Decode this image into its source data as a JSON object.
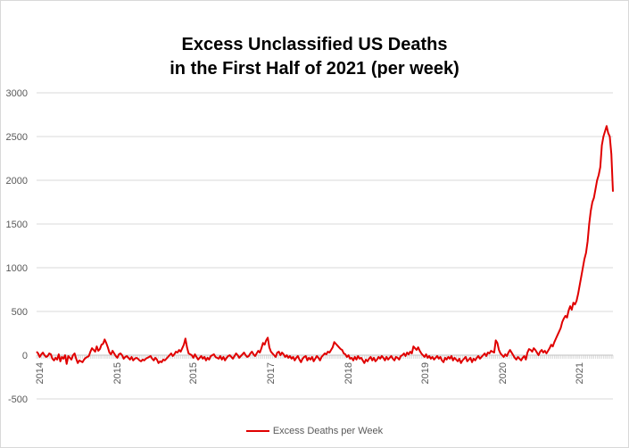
{
  "chart_data": {
    "type": "line",
    "title": [
      "Excess Unclassified US Deaths",
      "in the First Half of 2021 (per week)"
    ],
    "xlabel": "",
    "ylabel": "",
    "ylim": [
      -500,
      3000
    ],
    "yticks": [
      -500,
      0,
      500,
      1000,
      1500,
      2000,
      2500,
      3000
    ],
    "ytick_labels": [
      "-500",
      "0",
      "500",
      "1000",
      "1500",
      "2000",
      "2500",
      "3000"
    ],
    "xtick_labels": [
      "2014",
      "2015",
      "2015",
      "2017",
      "2018",
      "2019",
      "2020",
      "2021"
    ],
    "grid": true,
    "legend_position": "bottom",
    "series": [
      {
        "name": "Excess Deaths per Week",
        "color": "#e00000",
        "values": [
          40,
          20,
          -20,
          10,
          30,
          0,
          -20,
          -10,
          20,
          10,
          -40,
          -60,
          -30,
          -50,
          10,
          -70,
          -20,
          -40,
          0,
          -100,
          -10,
          -30,
          -50,
          0,
          20,
          -40,
          -90,
          -60,
          -70,
          -80,
          -50,
          -30,
          -20,
          -10,
          40,
          80,
          60,
          40,
          100,
          50,
          70,
          120,
          130,
          180,
          140,
          90,
          30,
          10,
          50,
          20,
          -10,
          -30,
          10,
          20,
          0,
          -40,
          -20,
          -10,
          -30,
          -50,
          -20,
          -60,
          -40,
          -30,
          -40,
          -60,
          -70,
          -50,
          -60,
          -40,
          -30,
          -20,
          -10,
          -40,
          -60,
          -30,
          -50,
          -90,
          -70,
          -80,
          -50,
          -60,
          -40,
          -20,
          0,
          20,
          -10,
          10,
          40,
          30,
          60,
          40,
          80,
          120,
          190,
          90,
          20,
          10,
          0,
          -30,
          10,
          -20,
          -50,
          -30,
          -10,
          -40,
          -20,
          -60,
          -30,
          -50,
          -10,
          0,
          10,
          -20,
          -30,
          -40,
          -10,
          -50,
          -20,
          -60,
          -30,
          -10,
          0,
          -20,
          -40,
          -10,
          20,
          0,
          -30,
          -10,
          10,
          30,
          0,
          -20,
          -10,
          20,
          40,
          10,
          -10,
          20,
          50,
          30,
          80,
          140,
          120,
          170,
          200,
          90,
          40,
          20,
          0,
          -20,
          30,
          40,
          0,
          30,
          10,
          -20,
          0,
          -30,
          -10,
          -40,
          -20,
          -60,
          -30,
          -10,
          -50,
          -80,
          -40,
          -20,
          -10,
          -60,
          -30,
          -50,
          -20,
          -70,
          -40,
          -10,
          -30,
          -60,
          -20,
          0,
          20,
          10,
          40,
          30,
          60,
          90,
          150,
          130,
          110,
          90,
          70,
          60,
          20,
          10,
          -20,
          0,
          -40,
          -30,
          -60,
          -20,
          -50,
          -10,
          -40,
          -30,
          -60,
          -90,
          -50,
          -70,
          -40,
          -20,
          -60,
          -30,
          -70,
          -50,
          -20,
          -40,
          -10,
          -30,
          -60,
          -20,
          -50,
          -30,
          -10,
          -40,
          -60,
          -20,
          -30,
          -50,
          -10,
          0,
          20,
          -10,
          30,
          10,
          40,
          20,
          100,
          80,
          60,
          90,
          50,
          20,
          0,
          -20,
          10,
          -30,
          -10,
          -40,
          -20,
          -50,
          -30,
          -10,
          -40,
          -20,
          -60,
          -80,
          -30,
          -50,
          -20,
          -40,
          -10,
          -60,
          -30,
          -50,
          -70,
          -40,
          -90,
          -60,
          -40,
          -20,
          -70,
          -50,
          -30,
          -80,
          -40,
          -60,
          -30,
          -10,
          -40,
          -20,
          0,
          20,
          -10,
          30,
          20,
          50,
          40,
          30,
          170,
          140,
          60,
          20,
          0,
          -20,
          10,
          -10,
          30,
          60,
          30,
          0,
          -30,
          -50,
          -20,
          -40,
          -60,
          -30,
          -10,
          -50,
          30,
          70,
          60,
          40,
          80,
          60,
          30,
          0,
          40,
          60,
          30,
          50,
          20,
          50,
          80,
          120,
          100,
          150,
          190,
          230,
          270,
          310,
          380,
          420,
          450,
          430,
          510,
          560,
          520,
          600,
          580,
          620,
          700,
          800,
          900,
          1000,
          1100,
          1170,
          1300,
          1500,
          1650,
          1750,
          1800,
          1900,
          2000,
          2060,
          2150,
          2400,
          2500,
          2560,
          2620,
          2540,
          2500,
          2300,
          1870
        ]
      }
    ]
  }
}
